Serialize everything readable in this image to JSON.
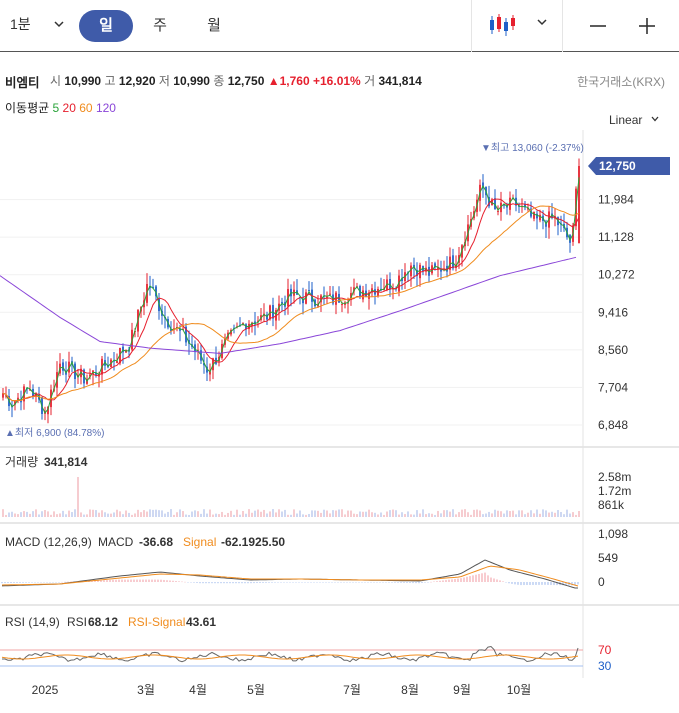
{
  "toolbar": {
    "interval": "1분",
    "tabs": [
      "일",
      "주",
      "월"
    ]
  },
  "stock": {
    "name": "비엠티",
    "open_label": "시",
    "open": "10,990",
    "high_label": "고",
    "high": "12,920",
    "low_label": "저",
    "low": "10,990",
    "close_label": "종",
    "close": "12,750",
    "change": "▲1,760",
    "change_pct": "+16.01%",
    "volume_label": "거",
    "volume": "341,814",
    "exchange": "한국거래소(KRX)"
  },
  "indicator_legend": {
    "ma_label": "이동평균",
    "ma_periods": [
      "5",
      "20",
      "60",
      "120"
    ]
  },
  "scale_mode": "Linear",
  "colors": {
    "up": "#e6202e",
    "down": "#1e5fc8",
    "ma5": "#2aa33a",
    "ma20": "#e6202e",
    "ma60": "#f08c1e",
    "ma120": "#8a46d8",
    "accent": "#3f5ba9",
    "signal": "#f08c1e"
  },
  "chart_data": {
    "type": "candlestick",
    "price_axis_ticks": [
      "6,848",
      "7,704",
      "8,560",
      "9,416",
      "10,272",
      "11,128",
      "11,984"
    ],
    "price_range": [
      6848,
      12750
    ],
    "current_price_label": "12,750",
    "max_marker": "▼최고 13,060 (-2.37%)",
    "min_marker": "▲최저 6,900 (84.78%)",
    "time_axis_labels": [
      "2025",
      "3월",
      "4월",
      "5월",
      "7월",
      "8월",
      "9월",
      "10월"
    ],
    "candles_approx_monthly_close": [
      {
        "period": "2025-01",
        "close": 7400
      },
      {
        "period": "2025-02",
        "close": 8500
      },
      {
        "period": "2025-03",
        "close": 9200
      },
      {
        "period": "2025-04",
        "close": 8300
      },
      {
        "period": "2025-05",
        "close": 9300
      },
      {
        "period": "2025-06",
        "close": 9500
      },
      {
        "period": "2025-07",
        "close": 9700
      },
      {
        "period": "2025-08",
        "close": 10400
      },
      {
        "period": "2025-09",
        "close": 12000
      },
      {
        "period": "2025-10",
        "close": 11500
      },
      {
        "period": "2025-11",
        "close": 12750
      }
    ],
    "volume": {
      "label": "거래량",
      "value": "341,814",
      "axis_ticks": [
        "2.58m",
        "1.72m",
        "861k"
      ]
    },
    "macd": {
      "label": "MACD (12,26,9)",
      "macd_label": "MACD",
      "macd_value": "-36.68",
      "signal_label": "Signal",
      "signal_value": "-62.1925.50",
      "axis_ticks": [
        "1,098",
        "549",
        "0"
      ]
    },
    "rsi": {
      "label": "RSI (14,9)",
      "rsi_label": "RSI",
      "rsi_value": "68.12",
      "signal_label": "RSI-Signal",
      "signal_value": "43.61",
      "axis_ticks": [
        "70",
        "30"
      ]
    }
  }
}
